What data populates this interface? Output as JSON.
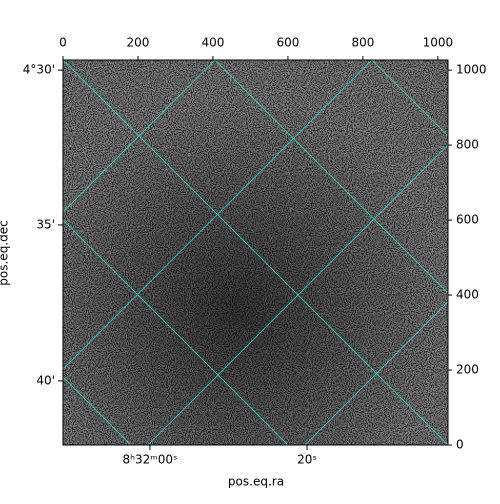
{
  "chart_data": {
    "type": "image",
    "xlabel": "pos.eq.ra",
    "ylabel": "pos.eq.dec",
    "xlim": [
      0,
      1027
    ],
    "ylim": [
      0,
      1027
    ],
    "xticks": [
      0,
      200,
      400,
      600,
      800,
      1000
    ],
    "yticks": [
      0,
      200,
      400,
      600,
      800,
      1000
    ],
    "ra_ticks": [
      {
        "value": 232,
        "label": "8ʰ32ᵐ00ˢ"
      },
      {
        "value": 651,
        "label": "20ˢ"
      }
    ],
    "dec_ticks": [
      {
        "value": 1000,
        "label": "4°30'"
      },
      {
        "value": 587,
        "label": "35'"
      },
      {
        "value": 171,
        "label": "40'"
      }
    ],
    "grid": true,
    "grid_color": "#40e0e0"
  }
}
